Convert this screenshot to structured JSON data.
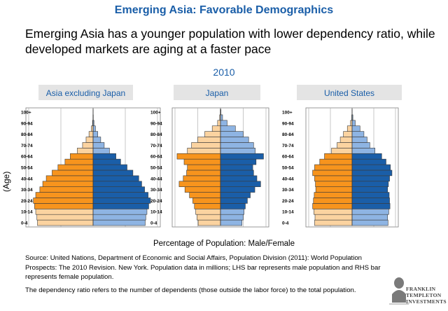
{
  "header": {
    "title": "Emerging Asia: Favorable Demographics",
    "subtitle": "Emerging Asia has a younger population with lower dependency ratio, while developed markets are aging at a faster pace",
    "year": "2010"
  },
  "colors": {
    "male_young": "#fbd3a0",
    "male_working": "#f7941d",
    "female_young": "#8eb4e3",
    "female_working": "#1a5ea8",
    "title": "#1a5ea8"
  },
  "chart_data": [
    {
      "type": "bar",
      "title": "Asia excluding Japan",
      "categories": [
        "0-4",
        "5-9",
        "10-14",
        "15-19",
        "20-24",
        "25-29",
        "30-34",
        "35-39",
        "40-44",
        "45-49",
        "50-54",
        "55-59",
        "60-64",
        "65-69",
        "70-74",
        "75-79",
        "80-84",
        "85-89",
        "90-94",
        "95-99",
        "100+"
      ],
      "tick_labels": [
        "0-4",
        "10-14",
        "20-24",
        "30-34",
        "40-44",
        "50-54",
        "60-64",
        "70-74",
        "80-84",
        "90-94",
        "100+"
      ],
      "series": [
        {
          "values": [
            95,
            96,
            98,
            100,
            102,
            98,
            91,
            86,
            80,
            70,
            60,
            48,
            39,
            27,
            18,
            12,
            7,
            3,
            1,
            0.3,
            0.1
          ]
        },
        {
          "values": [
            89,
            90,
            92,
            95,
            98,
            94,
            88,
            83,
            78,
            68,
            58,
            47,
            39,
            28,
            19,
            13,
            8,
            4,
            1.5,
            0.4,
            0.1
          ]
        }
      ],
      "xlim": [
        -110,
        110
      ]
    },
    {
      "type": "bar",
      "title": "Japan",
      "categories": [
        "0-4",
        "5-9",
        "10-14",
        "15-19",
        "20-24",
        "25-29",
        "30-34",
        "35-39",
        "40-44",
        "45-49",
        "50-54",
        "55-59",
        "60-64",
        "65-69",
        "70-74",
        "75-79",
        "80-84",
        "85-89",
        "90-94",
        "95-99",
        "100+"
      ],
      "tick_labels": [
        "0-4",
        "10-14",
        "20-24",
        "30-34",
        "40-44",
        "50-54",
        "60-64",
        "70-74",
        "80-84",
        "90-94",
        "100+"
      ],
      "series": [
        {
          "values": [
            54,
            57,
            60,
            63,
            67,
            75,
            86,
            100,
            90,
            82,
            80,
            88,
            105,
            80,
            70,
            55,
            38,
            20,
            7,
            2,
            0.5
          ]
        },
        {
          "values": [
            52,
            55,
            57,
            60,
            65,
            72,
            83,
            97,
            88,
            80,
            78,
            86,
            104,
            84,
            80,
            68,
            55,
            36,
            16,
            5,
            1
          ]
        }
      ],
      "xlim": [
        -110,
        110
      ]
    },
    {
      "type": "bar",
      "title": "United States",
      "categories": [
        "0-4",
        "5-9",
        "10-14",
        "15-19",
        "20-24",
        "25-29",
        "30-34",
        "35-39",
        "40-44",
        "45-49",
        "50-54",
        "55-59",
        "60-64",
        "65-69",
        "70-74",
        "75-79",
        "80-84",
        "85-89",
        "90-94",
        "95-99",
        "100+"
      ],
      "tick_labels": [
        "0-4",
        "10-14",
        "20-24",
        "30-34",
        "40-44",
        "50-54",
        "60-64",
        "70-74",
        "80-84",
        "90-94",
        "100+"
      ],
      "series": [
        {
          "values": [
            95,
            94,
            97,
            100,
            98,
            96,
            92,
            93,
            95,
            100,
            95,
            82,
            70,
            52,
            38,
            30,
            22,
            12,
            4,
            1,
            0.2
          ]
        },
        {
          "values": [
            91,
            90,
            93,
            96,
            95,
            94,
            90,
            92,
            95,
            101,
            97,
            86,
            75,
            58,
            45,
            38,
            30,
            20,
            8,
            2,
            0.3
          ]
        }
      ],
      "xlim": [
        -110,
        110
      ]
    }
  ],
  "axis": {
    "ylabel": "(Age)",
    "xlabel": "Percentage of Population: Male/Female"
  },
  "footer": {
    "source": "Source: United Nations, Department of Economic and Social Affairs, Population Division (2011): World Population Prospects: The 2010 Revision. New York. Population data in millions; LHS bar represents male population and RHS bar represents female population.",
    "note": "The dependency ratio refers to the number of dependents (those outside the labor force) to the total population.",
    "logo_text": "FRANKLIN TEMPLETON INVESTMENTS"
  }
}
